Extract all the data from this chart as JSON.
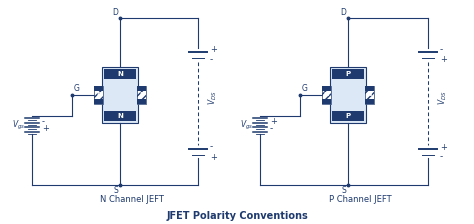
{
  "bg_color": "#ffffff",
  "lc": "#1e3a6e",
  "dc": "#1e3a6e",
  "title": "JFET Polarity Conventions",
  "label_n": "N Channel JEFT",
  "label_p": "P Channel JEFT",
  "title_fs": 7,
  "label_fs": 6,
  "text_fs": 5.5
}
